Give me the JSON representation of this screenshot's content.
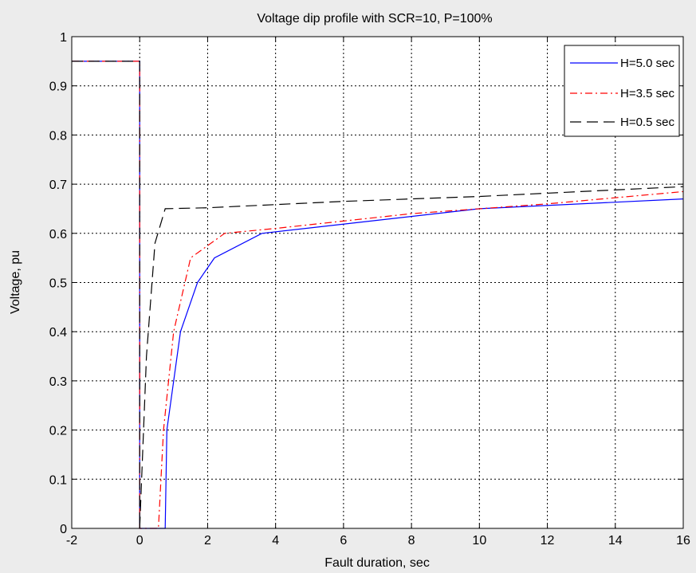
{
  "chart_data": {
    "type": "line",
    "title": "Voltage dip profile with SCR=10, P=100%",
    "xlabel": "Fault duration, sec",
    "ylabel": "Voltage, pu",
    "xlim": [
      -2,
      16
    ],
    "ylim": [
      0,
      1
    ],
    "xticks": [
      -2,
      0,
      2,
      4,
      6,
      8,
      10,
      12,
      14,
      16
    ],
    "yticks": [
      0,
      0.1,
      0.2,
      0.3,
      0.4,
      0.5,
      0.6,
      0.7,
      0.8,
      0.9,
      1
    ],
    "xtick_labels": [
      "-2",
      "0",
      "2",
      "4",
      "6",
      "8",
      "10",
      "12",
      "14",
      "16"
    ],
    "ytick_labels": [
      "0",
      "0.1",
      "0.2",
      "0.3",
      "0.4",
      "0.5",
      "0.6",
      "0.7",
      "0.8",
      "0.9",
      "1"
    ],
    "grid": true,
    "legend_position": "top-right",
    "series": [
      {
        "name": "H=5.0 sec",
        "color": "#0000ff",
        "style": "solid",
        "points": [
          [
            -2,
            0.95
          ],
          [
            0,
            0.95
          ],
          [
            0,
            0
          ],
          [
            0.75,
            0
          ],
          [
            0.8,
            0.2
          ],
          [
            1.2,
            0.4
          ],
          [
            1.7,
            0.5
          ],
          [
            2.2,
            0.55
          ],
          [
            3.6,
            0.6
          ],
          [
            10,
            0.65
          ],
          [
            16,
            0.67
          ]
        ]
      },
      {
        "name": "H=3.5 sec",
        "color": "#ff0000",
        "style": "dashdot",
        "points": [
          [
            -2,
            0.95
          ],
          [
            0,
            0.95
          ],
          [
            0,
            0
          ],
          [
            0.55,
            0
          ],
          [
            0.7,
            0.2
          ],
          [
            1.0,
            0.4
          ],
          [
            1.5,
            0.55
          ],
          [
            2.5,
            0.6
          ],
          [
            4,
            0.61
          ],
          [
            8,
            0.64
          ],
          [
            12,
            0.66
          ],
          [
            16,
            0.685
          ]
        ]
      },
      {
        "name": "H=0.5 sec",
        "color": "#000000",
        "style": "dashed",
        "points": [
          [
            -2,
            0.95
          ],
          [
            0,
            0.95
          ],
          [
            0,
            0
          ],
          [
            0.2,
            0.35
          ],
          [
            0.45,
            0.58
          ],
          [
            0.75,
            0.65
          ],
          [
            2,
            0.652
          ],
          [
            6,
            0.665
          ],
          [
            10,
            0.675
          ],
          [
            16,
            0.695
          ]
        ]
      }
    ]
  }
}
